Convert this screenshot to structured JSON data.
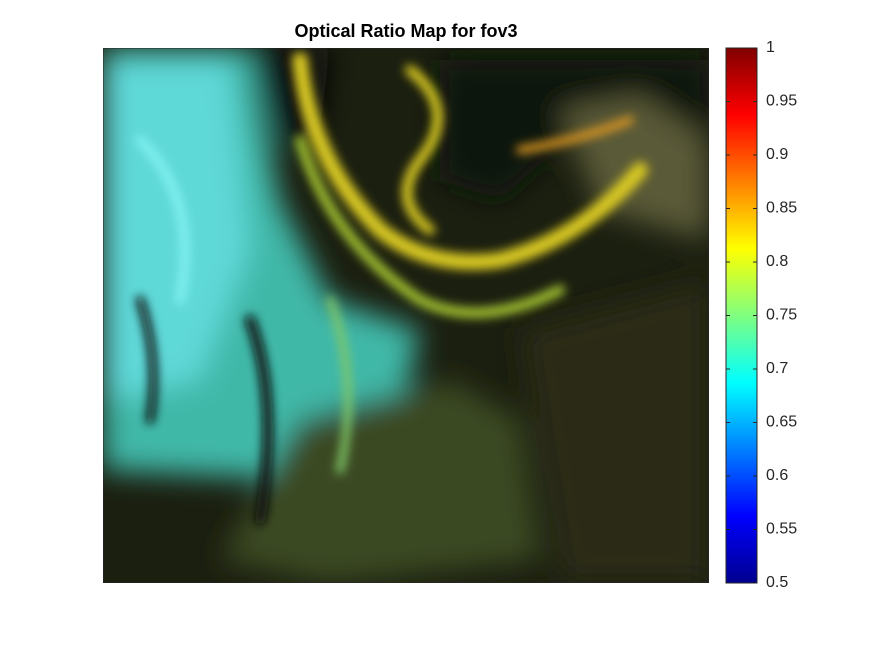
{
  "chart_data": {
    "type": "image",
    "title": "Optical Ratio Map for fov3",
    "colormap": "jet",
    "clim": [
      0.5,
      1
    ],
    "cticks": [
      0.5,
      0.55,
      0.6,
      0.65,
      0.7,
      0.75,
      0.8,
      0.85,
      0.9,
      0.95,
      1
    ]
  }
}
